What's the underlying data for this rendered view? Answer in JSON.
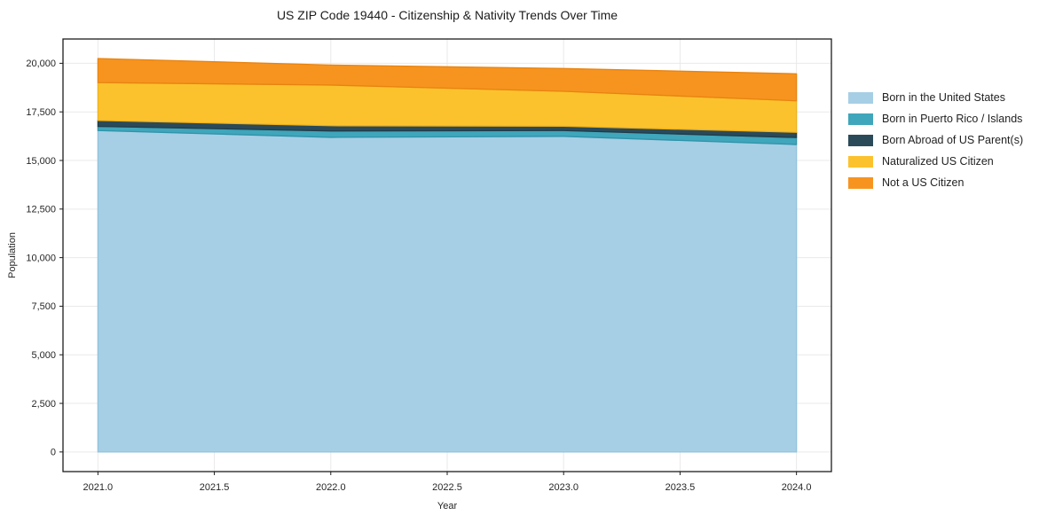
{
  "page_title": "US ZIP Code 19440 - Citizenship & Nativity Trends Over Time",
  "chart_data": {
    "type": "area",
    "stacked": true,
    "title": "US ZIP Code 19440 - Citizenship & Nativity Trends Over Time",
    "xlabel": "Year",
    "ylabel": "Population",
    "x": [
      2021,
      2022,
      2023,
      2024
    ],
    "series": [
      {
        "name": "Born in the United States",
        "values": [
          16540,
          16190,
          16240,
          15820
        ],
        "color": "#a6cfe5",
        "edge": "#90c3dc"
      },
      {
        "name": "Born in Puerto Rico / Islands",
        "values": [
          215,
          330,
          300,
          360
        ],
        "color": "#3fa6bb",
        "edge": "#2f93a9"
      },
      {
        "name": "Born Abroad of US Parent(s)",
        "values": [
          305,
          270,
          225,
          270
        ],
        "color": "#2b4a59",
        "edge": "#203b48"
      },
      {
        "name": "Naturalized US Citizen",
        "values": [
          1950,
          2090,
          1795,
          1620
        ],
        "color": "#fcc22e",
        "edge": "#efb11b"
      },
      {
        "name": "Not a US Citizen",
        "values": [
          1235,
          1030,
          1170,
          1390
        ],
        "color": "#f79420",
        "edge": "#e8830f"
      }
    ],
    "stack_totals": [
      20245,
      19910,
      19730,
      19460
    ],
    "x_ticks": [
      2021.0,
      2021.5,
      2022.0,
      2022.5,
      2023.0,
      2023.5,
      2024.0
    ],
    "y_ticks": [
      0,
      2500,
      5000,
      7500,
      10000,
      12500,
      15000,
      17500,
      20000
    ],
    "xlim": [
      2020.85,
      2024.15
    ],
    "ylim": [
      -1010,
      21250
    ],
    "grid": true,
    "legend_position": "right-outside"
  },
  "colors": {
    "background": "#ffffff",
    "grid": "#e9e9e9",
    "spine": "#1c1c1c",
    "tick": "#1c1c1c",
    "tick_label": "#262626",
    "title_text": "#1c1c1c"
  }
}
